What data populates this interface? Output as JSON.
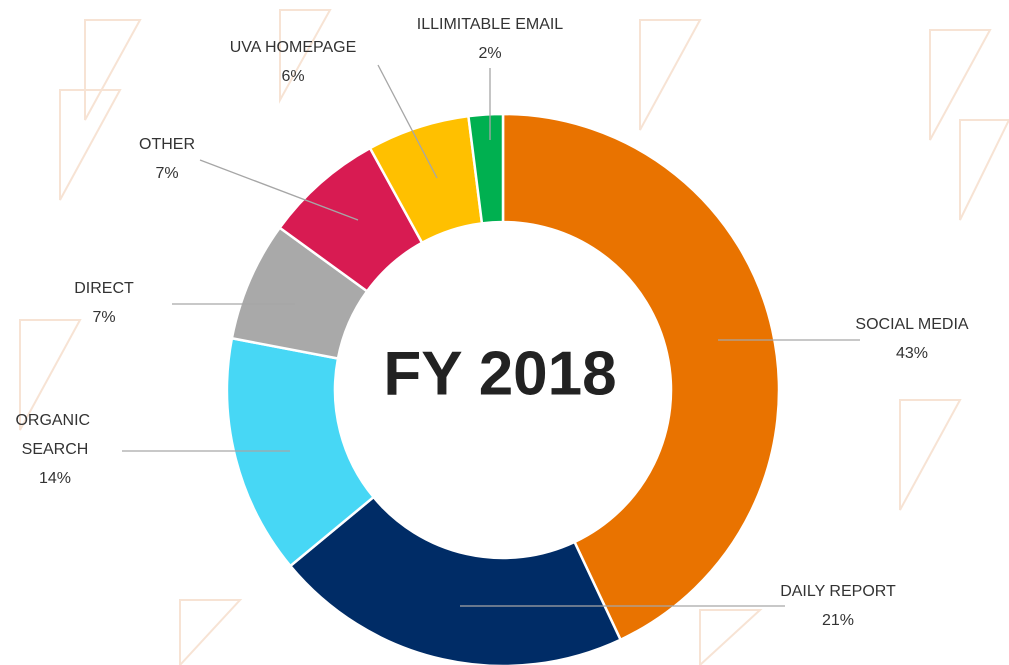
{
  "chart_data": {
    "type": "donut",
    "center_label": "FY 2018",
    "categories": [
      "SOCIAL MEDIA",
      "DAILY REPORT",
      "ORGANIC SEARCH",
      "DIRECT",
      "OTHER",
      "UVA HOMEPAGE",
      "ILLIMITABLE EMAIL"
    ],
    "values": [
      43,
      21,
      14,
      7,
      7,
      6,
      2
    ],
    "value_labels": [
      "43%",
      "21%",
      "14%",
      "7%",
      "7%",
      "6%",
      "2%"
    ],
    "colors": [
      "#e97300",
      "#002c66",
      "#47d7f5",
      "#a9a9a9",
      "#d81b52",
      "#ffc000",
      "#00b050"
    ]
  }
}
